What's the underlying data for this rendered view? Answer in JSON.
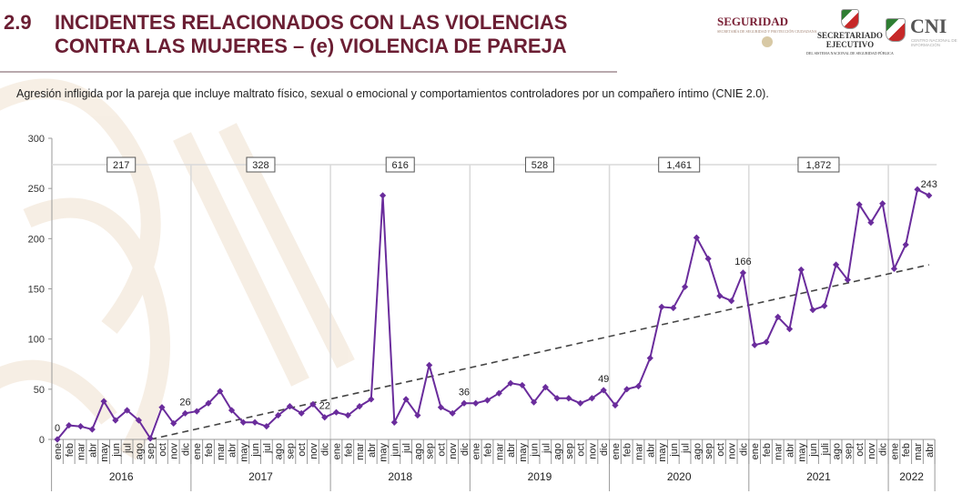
{
  "header": {
    "section_number": "2.9",
    "title_line1": "INCIDENTES RELACIONADOS CON LAS VIOLENCIAS",
    "title_line2": "CONTRA LAS MUJERES – (e) VIOLENCIA DE PAREJA",
    "subtitle": "Agresión infligida por la pareja que incluye maltrato físico, sexual o emocional y comportamientos controladores por un compañero íntimo (CNIE 2.0).",
    "logos": {
      "seguridad": "SEGURIDAD",
      "seguridad_sub": "SECRETARÍA DE SEGURIDAD Y PROTECCIÓN CIUDADANA",
      "secretariado_line1": "SECRETARIADO",
      "secretariado_line2": "EJECUTIVO",
      "secretariado_sub": "DEL SISTEMA NACIONAL DE SEGURIDAD PÚBLICA",
      "cni": "CNI",
      "cni_sub": "CENTRO NACIONAL DE INFORMACIÓN"
    }
  },
  "colors": {
    "title": "#6b1e33",
    "series": "#6a2c9c",
    "trend": "#444444",
    "grid": "#d9d9d9"
  },
  "chart_data": {
    "type": "line",
    "title": "",
    "xlabel": "",
    "ylabel": "",
    "ylim": [
      0,
      300
    ],
    "yticks": [
      0,
      50,
      100,
      150,
      200,
      250,
      300
    ],
    "grid": "vertical year separators",
    "months": [
      "ene",
      "feb",
      "mar",
      "abr",
      "may",
      "jun",
      "jul",
      "ago",
      "sep",
      "oct",
      "nov",
      "dic"
    ],
    "years": [
      {
        "year": "2016",
        "total": "217",
        "months": [
          "ene",
          "feb",
          "mar",
          "abr",
          "may",
          "jun",
          "jul",
          "ago",
          "sep",
          "oct",
          "nov",
          "dic"
        ],
        "values": [
          0,
          14,
          13,
          10,
          38,
          19,
          29,
          19,
          1,
          32,
          16,
          26
        ]
      },
      {
        "year": "2017",
        "total": "328",
        "months": [
          "ene",
          "feb",
          "mar",
          "abr",
          "may",
          "jun",
          "jul",
          "ago",
          "sep",
          "oct",
          "nov",
          "dic"
        ],
        "values": [
          28,
          36,
          48,
          29,
          17,
          17,
          13,
          24,
          33,
          26,
          35,
          22
        ]
      },
      {
        "year": "2018",
        "total": "616",
        "months": [
          "ene",
          "feb",
          "mar",
          "abr",
          "may",
          "jun",
          "jul",
          "ago",
          "sep",
          "oct",
          "nov",
          "dic"
        ],
        "values": [
          27,
          24,
          33,
          40,
          243,
          17,
          40,
          24,
          74,
          32,
          26,
          36
        ]
      },
      {
        "year": "2019",
        "total": "528",
        "months": [
          "ene",
          "feb",
          "mar",
          "abr",
          "may",
          "jun",
          "jul",
          "ago",
          "sep",
          "oct",
          "nov",
          "dic"
        ],
        "values": [
          36,
          39,
          46,
          56,
          54,
          37,
          52,
          41,
          41,
          36,
          41,
          49
        ]
      },
      {
        "year": "2020",
        "total": "1,461",
        "months": [
          "ene",
          "feb",
          "mar",
          "abr",
          "may",
          "jun",
          "jul",
          "ago",
          "sep",
          "oct",
          "nov",
          "dic"
        ],
        "values": [
          34,
          50,
          53,
          81,
          132,
          131,
          152,
          201,
          180,
          143,
          138,
          166
        ]
      },
      {
        "year": "2021",
        "total": "1,872",
        "months": [
          "ene",
          "feb",
          "mar",
          "abr",
          "may",
          "jun",
          "juli",
          "ago",
          "sep",
          "oct",
          "nov",
          "dic"
        ],
        "values": [
          94,
          97,
          122,
          110,
          169,
          129,
          133,
          174,
          159,
          234,
          216,
          235
        ]
      },
      {
        "year": "2022",
        "total": "",
        "months": [
          "ene",
          "feb",
          "mar",
          "abr"
        ],
        "values": [
          170,
          194,
          249,
          243
        ]
      }
    ],
    "data_labels": [
      {
        "year": "2016",
        "month": "ene",
        "text": "0"
      },
      {
        "year": "2016",
        "month": "dic",
        "text": "26"
      },
      {
        "year": "2017",
        "month": "dic",
        "text": "22"
      },
      {
        "year": "2018",
        "month": "dic",
        "text": "36"
      },
      {
        "year": "2019",
        "month": "dic",
        "text": "49"
      },
      {
        "year": "2020",
        "month": "dic",
        "text": "166"
      },
      {
        "year": "2022",
        "month": "abr",
        "text": "243"
      }
    ],
    "trendline": {
      "style": "dashed",
      "from": {
        "year": "2016",
        "month": "sep",
        "value": 0
      },
      "to": {
        "year": "2022",
        "month": "abr",
        "value": 174
      }
    }
  }
}
